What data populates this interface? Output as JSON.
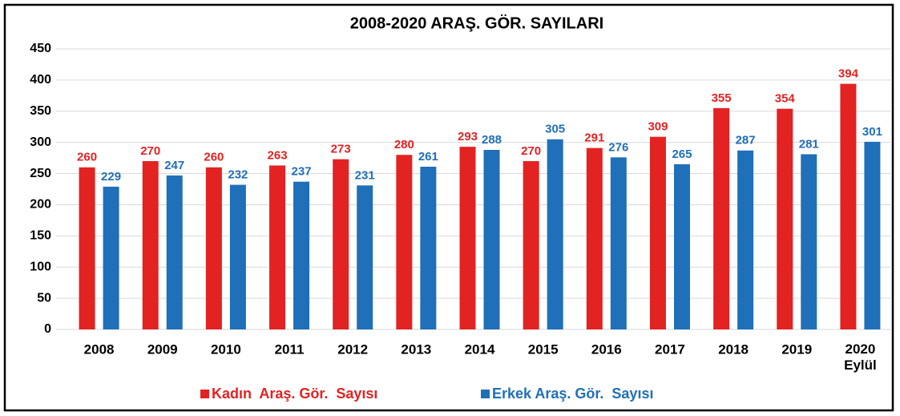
{
  "chart_data": {
    "type": "bar",
    "title": "2008-2020 ARAŞ. GÖR. SAYILARI",
    "categories": [
      "2008",
      "2009",
      "2010",
      "2011",
      "2012",
      "2013",
      "2014",
      "2015",
      "2016",
      "2017",
      "2018",
      "2019",
      "2020\nEylül"
    ],
    "series": [
      {
        "name": "Kadın  Araş. Gör.  Sayısı",
        "color": "#e32222",
        "values": [
          260,
          270,
          260,
          263,
          273,
          280,
          293,
          270,
          291,
          309,
          355,
          354,
          394
        ]
      },
      {
        "name": "Erkek Araş. Gör.  Sayısı",
        "color": "#1f6fb9",
        "values": [
          229,
          247,
          232,
          237,
          231,
          261,
          288,
          305,
          276,
          265,
          287,
          281,
          301
        ]
      }
    ],
    "ylim": [
      0,
      450
    ],
    "yticks": [
      0,
      50,
      100,
      150,
      200,
      250,
      300,
      350,
      400,
      450
    ],
    "grid": true,
    "legend": "bottom"
  }
}
